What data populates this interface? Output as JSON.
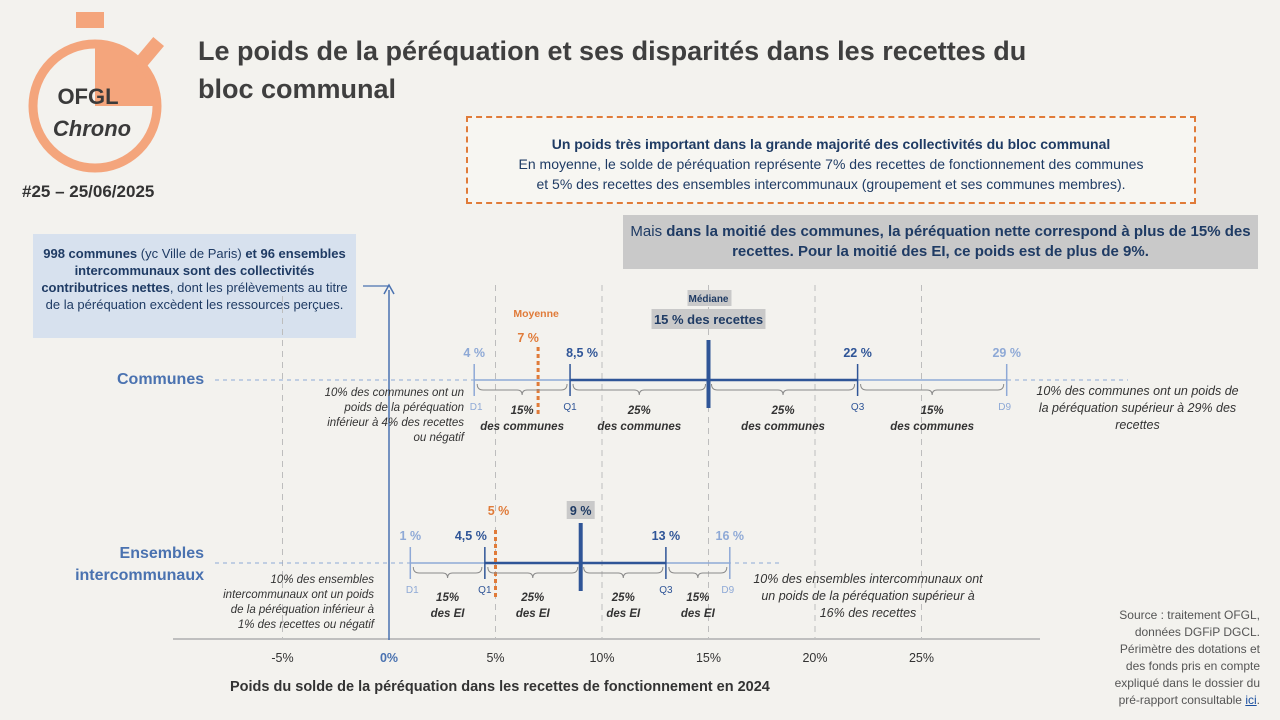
{
  "title": "Le poids de la péréquation et ses disparités dans les recettes du bloc communal",
  "issue": "#25 – 25/06/2025",
  "logo": {
    "line1": "OFGL",
    "line2": "Chrono"
  },
  "callout_top": {
    "heading": "Un poids très important dans la grande majorité des collectivités du bloc communal",
    "line1": "En moyenne, le solde de péréquation représente 7% des recettes de fonctionnement des communes",
    "line2": "et 5% des recettes des ensembles intercommunaux (groupement et ses communes membres)."
  },
  "callout_grey": {
    "p1": "Mais ",
    "p2": "dans la moitié des communes, la péréquation nette correspond à plus de 15% des recettes. Pour la moitié des EI, ce poids est de plus de 9%."
  },
  "callout_blue": {
    "b1": "998 communes",
    "t1": " (yc Ville de Paris) ",
    "b2": "et 96 ensembles intercommunaux sont des collectivités contributrices nettes",
    "t2": ", dont les prélèvements au titre de la péréquation excèdent les ressources perçues."
  },
  "source": {
    "text": "Source : traitement OFGL, données DGFiP DGCL. Périmètre des dotations et des fonds pris en compte expliqué dans le dossier du pré-rapport consultable ",
    "link": "ici",
    "end": "."
  },
  "colors": {
    "blue": "#4a72b0",
    "dark_blue": "#2f5597",
    "orange": "#e07b39",
    "light_blue": "#8ea9d6"
  },
  "chart_data": {
    "type": "box-plot",
    "xlabel": "Poids du solde de la péréquation dans les recettes de fonctionnement en 2024",
    "xlim": [
      -8,
      29
    ],
    "ticks": [
      {
        "value": -5,
        "label": "-5%"
      },
      {
        "value": 0,
        "label": "0%"
      },
      {
        "value": 5,
        "label": "5%"
      },
      {
        "value": 10,
        "label": "10%"
      },
      {
        "value": 15,
        "label": "15%"
      },
      {
        "value": 20,
        "label": "20%"
      },
      {
        "value": 25,
        "label": "25%"
      }
    ],
    "grid": true,
    "mean_label": "Moyenne",
    "median_label": "Médiane",
    "median_value_label": "15 % des recettes",
    "series": [
      {
        "name": "Communes",
        "d1": 4,
        "q1": 8.5,
        "median": 15,
        "q3": 22,
        "d9": 29,
        "mean": 7,
        "labels": {
          "d1": "4 %",
          "q1": "8,5 %",
          "q3": "22 %",
          "d9": "29 %",
          "mean": "7 %"
        },
        "segments": [
          "15% des communes",
          "25% des communes",
          "25% des communes",
          "15% des communes"
        ],
        "note_left": "10% des communes ont un poids de la péréquation inférieur à 4% des recettes ou négatif",
        "note_right": "10% des communes ont un poids de la péréquation supérieur à 29% des recettes"
      },
      {
        "name": "Ensembles intercommunaux",
        "d1": 1,
        "q1": 4.5,
        "median": 9,
        "q3": 13,
        "d9": 16,
        "mean": 5,
        "labels": {
          "d1": "1 %",
          "q1": "4,5 %",
          "median": "9 %",
          "q3": "13 %",
          "d9": "16 %",
          "mean": "5 %"
        },
        "segments": [
          "15% des EI",
          "25% des EI",
          "25% des EI",
          "15% des EI"
        ],
        "note_left": "10% des ensembles intercommunaux ont un poids de la péréquation inférieur à 1% des recettes ou négatif",
        "note_right": "10% des ensembles intercommunaux ont un poids de la péréquation supérieur à 16% des recettes"
      }
    ],
    "quantile_tags": [
      "D1",
      "Q1",
      "Q3",
      "D9"
    ]
  }
}
